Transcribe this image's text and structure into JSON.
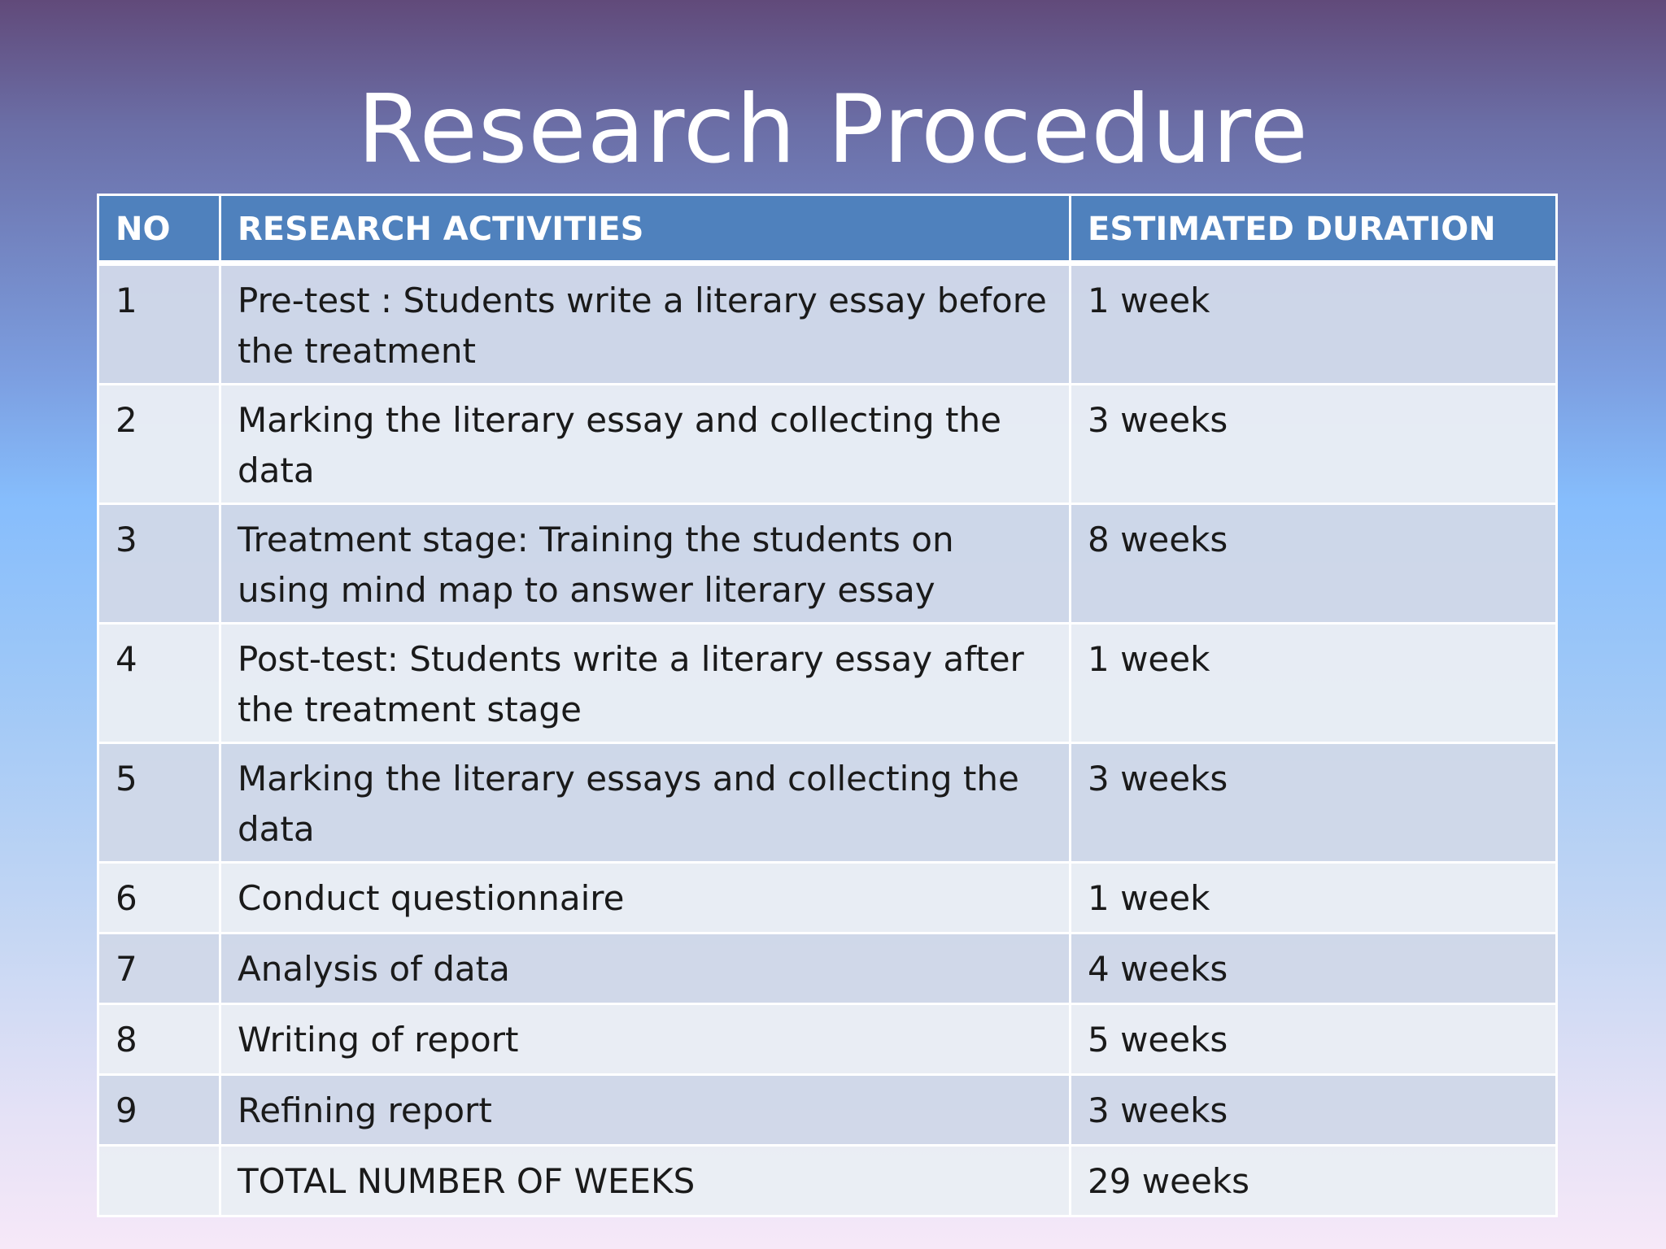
{
  "slide": {
    "title": "Research Procedure"
  },
  "table": {
    "headers": [
      "NO",
      "RESEARCH ACTIVITIES",
      "ESTIMATED DURATION"
    ],
    "rows": [
      {
        "no": "1",
        "activity": "Pre-test : Students write a literary essay before the treatment",
        "duration": "1 week"
      },
      {
        "no": "2",
        "activity": "Marking the literary essay and collecting the data",
        "duration": "3 weeks"
      },
      {
        "no": "3",
        "activity": "Treatment stage:  Training the students on using mind map to answer literary essay",
        "duration": "8 weeks"
      },
      {
        "no": "4",
        "activity": "Post-test:  Students write a literary essay after the treatment stage",
        "duration": "1 week"
      },
      {
        "no": "5",
        "activity": "Marking the literary essays and collecting the data",
        "duration": "3 weeks"
      },
      {
        "no": "6",
        "activity": "Conduct questionnaire",
        "duration": "1 week"
      },
      {
        "no": "7",
        "activity": "Analysis of data",
        "duration": "4 weeks"
      },
      {
        "no": "8",
        "activity": "Writing of report",
        "duration": "5 weeks"
      },
      {
        "no": "9",
        "activity": "Refining report",
        "duration": "3 weeks"
      },
      {
        "no": "",
        "activity": "TOTAL NUMBER OF WEEKS",
        "duration": "29 weeks"
      }
    ]
  },
  "colors": {
    "header_background": "#4f81bd",
    "header_text": "#ffffff",
    "row_band_dark": "#d0d8e8",
    "row_band_light": "#e9edf4",
    "title_text": "#ffffff"
  }
}
